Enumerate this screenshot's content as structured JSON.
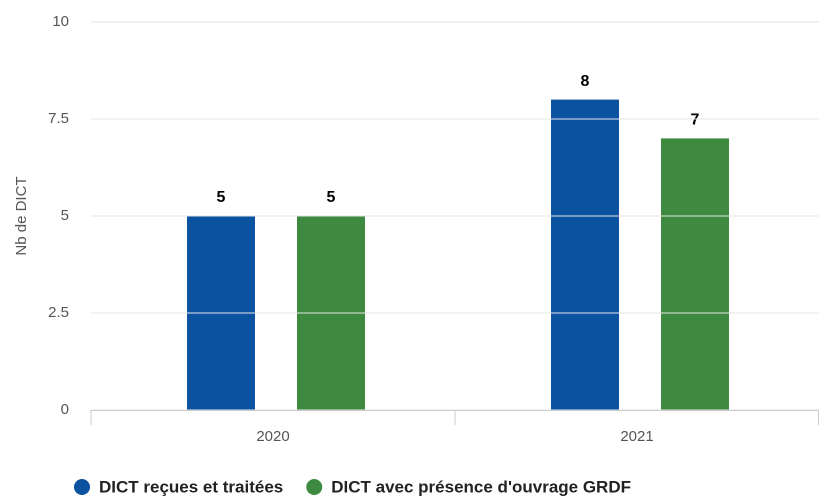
{
  "chart_data": {
    "type": "bar",
    "y_label": "Nb de DICT",
    "categories": [
      "2020",
      "2021"
    ],
    "series": [
      {
        "name": "DICT reçues et traitées",
        "color": "#0b52a0",
        "values": [
          5,
          8
        ]
      },
      {
        "name": "DICT avec présence d'ouvrage GRDF",
        "color": "#3d8a40",
        "values": [
          5,
          7
        ]
      }
    ],
    "ylim": [
      0,
      10
    ],
    "yticks": [
      0,
      2.5,
      5,
      7.5,
      10
    ],
    "grid": true
  }
}
